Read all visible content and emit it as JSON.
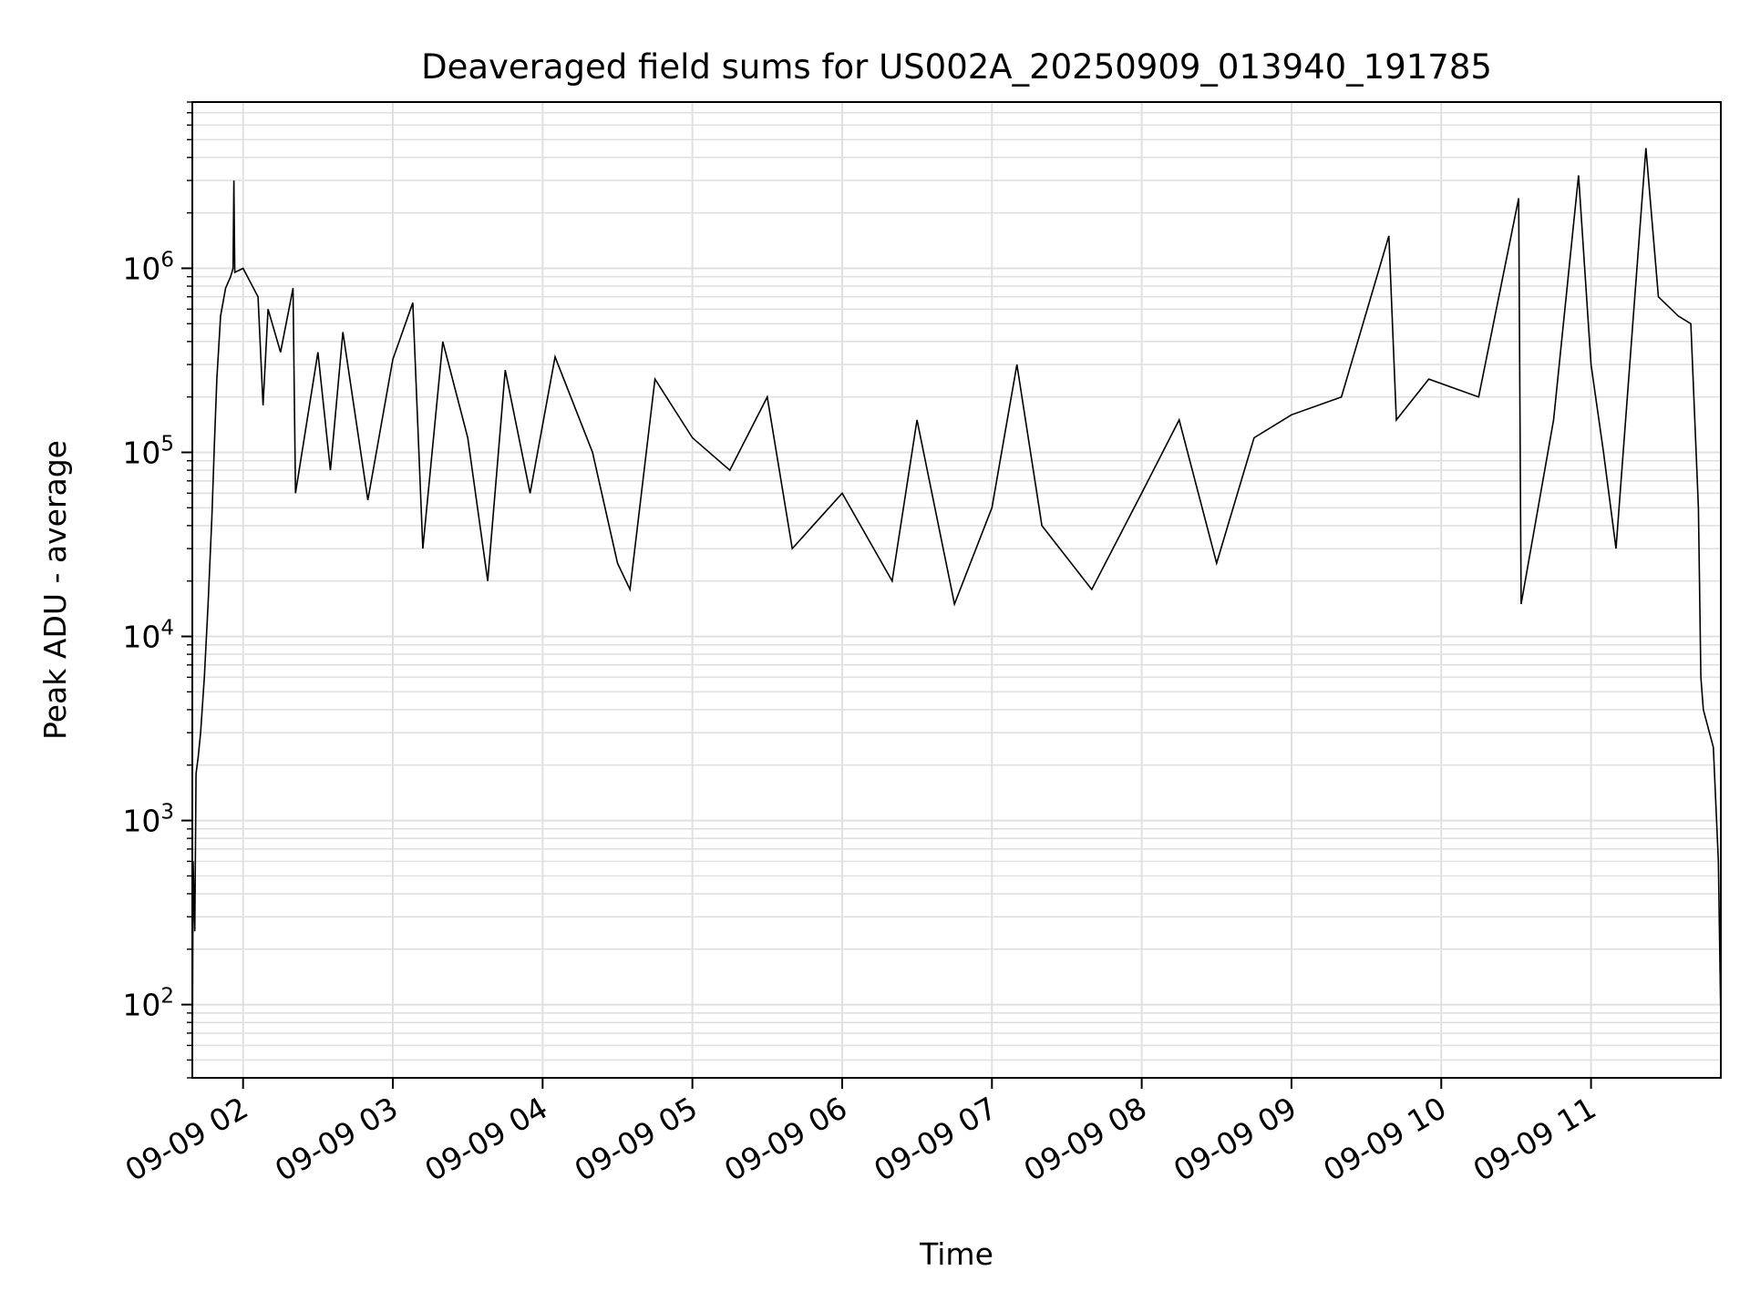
{
  "chart_data": {
    "type": "line",
    "title": "Deaveraged field sums for US002A_20250909_013940_191785",
    "xlabel": "Time",
    "ylabel": "Peak ADU - average",
    "y_scale": "log",
    "ylim": [
      40,
      8000000
    ],
    "xlim": [
      "2025-09-09 01:39:40",
      "2025-09-09 11:52:00"
    ],
    "grid": true,
    "line_color": "#000000",
    "grid_color": "#e0e0e0",
    "x_ticks": [
      {
        "t": "2025-09-09 02:00",
        "label": "09-09 02"
      },
      {
        "t": "2025-09-09 03:00",
        "label": "09-09 03"
      },
      {
        "t": "2025-09-09 04:00",
        "label": "09-09 04"
      },
      {
        "t": "2025-09-09 05:00",
        "label": "09-09 05"
      },
      {
        "t": "2025-09-09 06:00",
        "label": "09-09 06"
      },
      {
        "t": "2025-09-09 07:00",
        "label": "09-09 07"
      },
      {
        "t": "2025-09-09 08:00",
        "label": "09-09 08"
      },
      {
        "t": "2025-09-09 09:00",
        "label": "09-09 09"
      },
      {
        "t": "2025-09-09 10:00",
        "label": "09-09 10"
      },
      {
        "t": "2025-09-09 11:00",
        "label": "09-09 11"
      }
    ],
    "y_ticks": [
      {
        "value": 100,
        "base": "10",
        "exp": "2"
      },
      {
        "value": 1000,
        "base": "10",
        "exp": "3"
      },
      {
        "value": 10000,
        "base": "10",
        "exp": "4"
      },
      {
        "value": 100000,
        "base": "10",
        "exp": "5"
      },
      {
        "value": 1000000,
        "base": "10",
        "exp": "6"
      }
    ],
    "series": [
      {
        "values": [
          [
            "2025-09-09 01:39:40",
            40
          ],
          [
            "2025-09-09 01:40:00",
            600
          ],
          [
            "2025-09-09 01:40:40",
            250
          ],
          [
            "2025-09-09 01:41:10",
            1800
          ],
          [
            "2025-09-09 01:42:00",
            2200
          ],
          [
            "2025-09-09 01:43:00",
            3000
          ],
          [
            "2025-09-09 01:44:30",
            6000
          ],
          [
            "2025-09-09 01:46:00",
            15000
          ],
          [
            "2025-09-09 01:47:30",
            45000
          ],
          [
            "2025-09-09 01:48:30",
            110000
          ],
          [
            "2025-09-09 01:49:30",
            250000
          ],
          [
            "2025-09-09 01:51:00",
            550000
          ],
          [
            "2025-09-09 01:53:00",
            780000
          ],
          [
            "2025-09-09 01:55:00",
            900000
          ],
          [
            "2025-09-09 01:56:00",
            1000000
          ],
          [
            "2025-09-09 01:56:20",
            3000000
          ],
          [
            "2025-09-09 01:56:40",
            950000
          ],
          [
            "2025-09-09 02:00",
            1000000
          ],
          [
            "2025-09-09 02:06",
            700000
          ],
          [
            "2025-09-09 02:08",
            180000
          ],
          [
            "2025-09-09 02:10",
            600000
          ],
          [
            "2025-09-09 02:15",
            350000
          ],
          [
            "2025-09-09 02:20",
            780000
          ],
          [
            "2025-09-09 02:21",
            60000
          ],
          [
            "2025-09-09 02:30",
            350000
          ],
          [
            "2025-09-09 02:35",
            80000
          ],
          [
            "2025-09-09 02:40",
            450000
          ],
          [
            "2025-09-09 02:50",
            55000
          ],
          [
            "2025-09-09 03:00",
            320000
          ],
          [
            "2025-09-09 03:08",
            650000
          ],
          [
            "2025-09-09 03:12",
            30000
          ],
          [
            "2025-09-09 03:20",
            400000
          ],
          [
            "2025-09-09 03:30",
            120000
          ],
          [
            "2025-09-09 03:38",
            20000
          ],
          [
            "2025-09-09 03:45",
            280000
          ],
          [
            "2025-09-09 03:55",
            60000
          ],
          [
            "2025-09-09 04:05",
            330000
          ],
          [
            "2025-09-09 04:20",
            100000
          ],
          [
            "2025-09-09 04:30",
            25000
          ],
          [
            "2025-09-09 04:35",
            18000
          ],
          [
            "2025-09-09 04:45",
            250000
          ],
          [
            "2025-09-09 05:00",
            120000
          ],
          [
            "2025-09-09 05:15",
            80000
          ],
          [
            "2025-09-09 05:30",
            200000
          ],
          [
            "2025-09-09 05:40",
            30000
          ],
          [
            "2025-09-09 06:00",
            60000
          ],
          [
            "2025-09-09 06:20",
            20000
          ],
          [
            "2025-09-09 06:30",
            150000
          ],
          [
            "2025-09-09 06:45",
            15000
          ],
          [
            "2025-09-09 07:00",
            50000
          ],
          [
            "2025-09-09 07:10",
            300000
          ],
          [
            "2025-09-09 07:20",
            40000
          ],
          [
            "2025-09-09 07:40",
            18000
          ],
          [
            "2025-09-09 08:00",
            60000
          ],
          [
            "2025-09-09 08:15",
            150000
          ],
          [
            "2025-09-09 08:30",
            25000
          ],
          [
            "2025-09-09 08:45",
            120000
          ],
          [
            "2025-09-09 09:00",
            160000
          ],
          [
            "2025-09-09 09:20",
            200000
          ],
          [
            "2025-09-09 09:39",
            1500000
          ],
          [
            "2025-09-09 09:42",
            150000
          ],
          [
            "2025-09-09 09:55",
            250000
          ],
          [
            "2025-09-09 10:15",
            200000
          ],
          [
            "2025-09-09 10:31",
            2400000
          ],
          [
            "2025-09-09 10:32",
            15000
          ],
          [
            "2025-09-09 10:45",
            150000
          ],
          [
            "2025-09-09 10:55",
            3200000
          ],
          [
            "2025-09-09 11:00",
            300000
          ],
          [
            "2025-09-09 11:05",
            100000
          ],
          [
            "2025-09-09 11:10",
            30000
          ],
          [
            "2025-09-09 11:22",
            4500000
          ],
          [
            "2025-09-09 11:27",
            700000
          ],
          [
            "2025-09-09 11:35",
            550000
          ],
          [
            "2025-09-09 11:40",
            500000
          ],
          [
            "2025-09-09 11:43",
            50000
          ],
          [
            "2025-09-09 11:44",
            6000
          ],
          [
            "2025-09-09 11:45",
            4000
          ],
          [
            "2025-09-09 11:49",
            2500
          ],
          [
            "2025-09-09 11:51",
            600
          ],
          [
            "2025-09-09 11:52",
            80
          ]
        ]
      }
    ]
  }
}
